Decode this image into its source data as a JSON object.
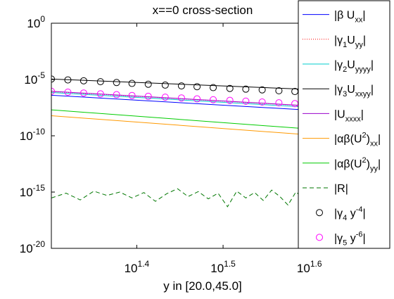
{
  "chart_data": {
    "type": "line",
    "title": "x==0 cross-section",
    "xlabel": "y in [20.0,45.0]",
    "ylabel": "",
    "x_scale": "log",
    "y_scale": "log",
    "xlim": [
      20.0,
      45.0
    ],
    "ylim": [
      1e-20,
      1
    ],
    "x_ticks": [
      {
        "value": 25.1189,
        "base": "10",
        "exp": "1.4"
      },
      {
        "value": 31.6228,
        "base": "10",
        "exp": "1.5"
      },
      {
        "value": 39.8107,
        "base": "10",
        "exp": "1.6"
      }
    ],
    "y_ticks": [
      {
        "value": 1,
        "base": "10",
        "exp": "0"
      },
      {
        "value": 1e-05,
        "base": "10",
        "exp": "-5"
      },
      {
        "value": 1e-10,
        "base": "10",
        "exp": "-10"
      },
      {
        "value": 1e-15,
        "base": "10",
        "exp": "-15"
      },
      {
        "value": 1e-20,
        "base": "10",
        "exp": "-20"
      }
    ],
    "grid": false,
    "legend_position": "top-right",
    "series": [
      {
        "key": "bUxx",
        "color": "#0000ff",
        "dash": "",
        "marker": "none",
        "x": [
          20.0,
          45.0
        ],
        "y": [
          4e-07,
          1.1e-08
        ]
      },
      {
        "key": "g1Uyy",
        "color": "#ff0000",
        "dash": "1,2",
        "marker": "none",
        "x": [
          20.0,
          45.0
        ],
        "y": [
          8.5e-07,
          2.6e-08
        ]
      },
      {
        "key": "g2Uyyyy",
        "color": "#00cccc",
        "dash": "",
        "marker": "none",
        "x": [
          20.0,
          45.0
        ],
        "y": [
          7e-07,
          2e-08
        ]
      },
      {
        "key": "g3Uxxyy",
        "color": "#000000",
        "dash": "",
        "marker": "none",
        "x": [
          20.0,
          45.0
        ],
        "y": [
          1.1e-05,
          9e-07
        ]
      },
      {
        "key": "Uxxxx",
        "color": "#9900cc",
        "dash": "",
        "marker": "none",
        "x": [
          20.0,
          45.0
        ],
        "y": [
          9e-07,
          2.7e-08
        ]
      },
      {
        "key": "abU2xx",
        "color": "#ff9900",
        "dash": "",
        "marker": "none",
        "x": [
          20.0,
          45.0
        ],
        "y": [
          6e-09,
          6e-11
        ]
      },
      {
        "key": "abU2yy",
        "color": "#00cc00",
        "dash": "",
        "marker": "none",
        "x": [
          20.0,
          45.0
        ],
        "y": [
          2e-08,
          2e-10
        ]
      },
      {
        "key": "R",
        "color": "#007700",
        "dash": "6,4",
        "marker": "none",
        "x": [
          20.0,
          20.8,
          21.6,
          22.4,
          23.2,
          24.0,
          24.8,
          25.6,
          26.4,
          27.2,
          28.0,
          28.8,
          29.6,
          30.4,
          31.2,
          32.0,
          32.8,
          33.6,
          34.4,
          35.2,
          36.0,
          36.8,
          37.6,
          38.4,
          39.2,
          40.0,
          40.8,
          41.6,
          42.4,
          43.2,
          44.0,
          45.0
        ],
        "y": [
          3e-16,
          8e-16,
          2e-16,
          1.2e-15,
          5e-16,
          1e-15,
          3e-16,
          9e-16,
          1.5e-16,
          7e-16,
          2e-15,
          4e-16,
          1.1e-15,
          2.5e-16,
          8e-16,
          5e-17,
          1.2e-15,
          3e-16,
          9e-16,
          1.8e-16,
          1.5e-15,
          4e-16,
          7e-17,
          1e-15,
          3e-16,
          8e-16,
          2e-16,
          1.1e-15,
          4e-16,
          9e-16,
          3e-16,
          7e-16
        ]
      },
      {
        "key": "g4y4",
        "color": "#000000",
        "dash": "",
        "marker": "circle",
        "x": [
          20.0,
          20.9,
          21.8,
          22.8,
          23.8,
          24.8,
          25.9,
          27.1,
          28.3,
          29.5,
          30.8,
          32.2,
          33.6,
          35.1,
          36.7,
          38.3,
          40.0,
          41.8
        ],
        "y": [
          1.1e-05,
          9.2e-06,
          7.7e-06,
          6.4e-06,
          5.4e-06,
          4.5e-06,
          3.8e-06,
          3.2e-06,
          2.7e-06,
          2.3e-06,
          1.9e-06,
          1.6e-06,
          1.4e-06,
          1.2e-06,
          1e-06,
          8.6e-07,
          7.3e-07,
          6.2e-07
        ]
      },
      {
        "key": "g5y6",
        "color": "#ff00ff",
        "dash": "",
        "marker": "circle",
        "x": [
          20.0,
          20.9,
          21.8,
          22.8,
          23.8,
          24.8,
          25.9,
          27.1,
          28.3,
          29.5,
          30.8,
          32.2,
          33.6,
          35.1,
          36.7,
          38.3,
          40.0,
          41.8
        ],
        "y": [
          9e-07,
          7.5e-07,
          6.3e-07,
          5.3e-07,
          4.5e-07,
          3.8e-07,
          3.2e-07,
          2.7e-07,
          2.3e-07,
          1.9e-07,
          1.6e-07,
          1.4e-07,
          1.2e-07,
          1e-07,
          8.5e-08,
          7.2e-08,
          6.1e-08,
          5.2e-08
        ]
      }
    ],
    "legend": [
      {
        "key": "bUxx",
        "color": "#0000ff",
        "dash": "",
        "marker": "none",
        "parts": [
          {
            "t": "|β U"
          },
          {
            "t": "xx",
            "s": "sub"
          },
          {
            "t": "|"
          }
        ]
      },
      {
        "key": "g1Uyy",
        "color": "#ff0000",
        "dash": "1,2",
        "marker": "none",
        "parts": [
          {
            "t": "|γ"
          },
          {
            "t": "1",
            "s": "sub"
          },
          {
            "t": "U"
          },
          {
            "t": "yy",
            "s": "sub"
          },
          {
            "t": "|"
          }
        ]
      },
      {
        "key": "g2Uyyyy",
        "color": "#00cccc",
        "dash": "",
        "marker": "none",
        "parts": [
          {
            "t": "|γ"
          },
          {
            "t": "2",
            "s": "sub"
          },
          {
            "t": "U"
          },
          {
            "t": "yyyy",
            "s": "sub"
          },
          {
            "t": "|"
          }
        ]
      },
      {
        "key": "g3Uxxyy",
        "color": "#000000",
        "dash": "",
        "marker": "none",
        "parts": [
          {
            "t": "|γ"
          },
          {
            "t": "3",
            "s": "sub"
          },
          {
            "t": "U"
          },
          {
            "t": "xxyy",
            "s": "sub"
          },
          {
            "t": "|"
          }
        ]
      },
      {
        "key": "Uxxxx",
        "color": "#9900cc",
        "dash": "",
        "marker": "none",
        "parts": [
          {
            "t": "|U"
          },
          {
            "t": "xxxx",
            "s": "sub"
          },
          {
            "t": "|"
          }
        ]
      },
      {
        "key": "abU2xx",
        "color": "#ff9900",
        "dash": "",
        "marker": "none",
        "parts": [
          {
            "t": "|αβ(U"
          },
          {
            "t": "2",
            "s": "sup"
          },
          {
            "t": ")"
          },
          {
            "t": "xx",
            "s": "sub"
          },
          {
            "t": "|"
          }
        ]
      },
      {
        "key": "abU2yy",
        "color": "#00cc00",
        "dash": "",
        "marker": "none",
        "parts": [
          {
            "t": "|αβ(U"
          },
          {
            "t": "2",
            "s": "sup"
          },
          {
            "t": ")"
          },
          {
            "t": "yy",
            "s": "sub"
          },
          {
            "t": "|"
          }
        ]
      },
      {
        "key": "R",
        "color": "#007700",
        "dash": "6,4",
        "marker": "none",
        "parts": [
          {
            "t": "|R|"
          }
        ]
      },
      {
        "key": "g4y4",
        "color": "#000000",
        "dash": "",
        "marker": "circle",
        "parts": [
          {
            "t": "|γ"
          },
          {
            "t": "4",
            "s": "sub"
          },
          {
            "t": " y"
          },
          {
            "t": "-4",
            "s": "sup"
          },
          {
            "t": "|"
          }
        ]
      },
      {
        "key": "g5y6",
        "color": "#ff00ff",
        "dash": "",
        "marker": "circle",
        "parts": [
          {
            "t": "|γ"
          },
          {
            "t": "5",
            "s": "sub"
          },
          {
            "t": " y"
          },
          {
            "t": "-6",
            "s": "sup"
          },
          {
            "t": "|"
          }
        ]
      }
    ]
  }
}
